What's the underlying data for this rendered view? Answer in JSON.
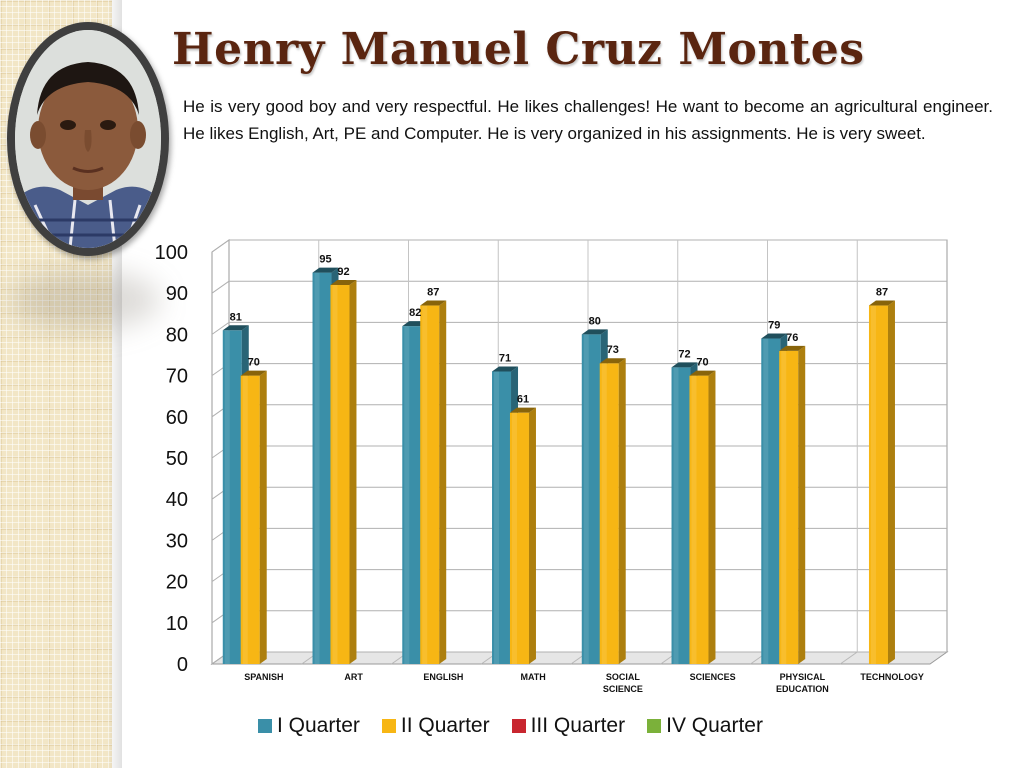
{
  "student": {
    "name": "Henry Manuel Cruz Montes",
    "description": "He is very good boy and very respectful. He likes challenges! He want to become an agricultural engineer.  He likes English, Art, PE and Computer.  He is very organized in his assignments. He is very sweet."
  },
  "colors": {
    "title": "#5a2510",
    "q1": "#3a8fa8",
    "q2": "#f7b614",
    "q3": "#c8262f",
    "q4": "#7bb13a"
  },
  "chart_data": {
    "type": "bar",
    "three_d": true,
    "categories": [
      "SPANISH",
      "ART",
      "ENGLISH",
      "MATH",
      "SOCIAL SCIENCE",
      "SCIENCES",
      "PHYSICAL EDUCATION",
      "TECHNOLOGY"
    ],
    "series": [
      {
        "name": "I Quarter",
        "color": "#3a8fa8",
        "values": [
          81,
          95,
          82,
          71,
          80,
          72,
          79,
          null
        ]
      },
      {
        "name": "II Quarter",
        "color": "#f7b614",
        "values": [
          70,
          92,
          87,
          61,
          73,
          70,
          76,
          87
        ]
      },
      {
        "name": "III Quarter",
        "color": "#c8262f",
        "values": [
          null,
          null,
          null,
          null,
          null,
          null,
          null,
          null
        ]
      },
      {
        "name": "IV Quarter",
        "color": "#7bb13a",
        "values": [
          null,
          null,
          null,
          null,
          null,
          null,
          null,
          null
        ]
      }
    ],
    "yticks": [
      "0",
      "10",
      "20",
      "30",
      "40",
      "50",
      "60",
      "70",
      "80",
      "90",
      "100"
    ],
    "ylim": [
      0,
      100
    ],
    "grid": true,
    "legend_position": "bottom",
    "data_labels": true
  }
}
